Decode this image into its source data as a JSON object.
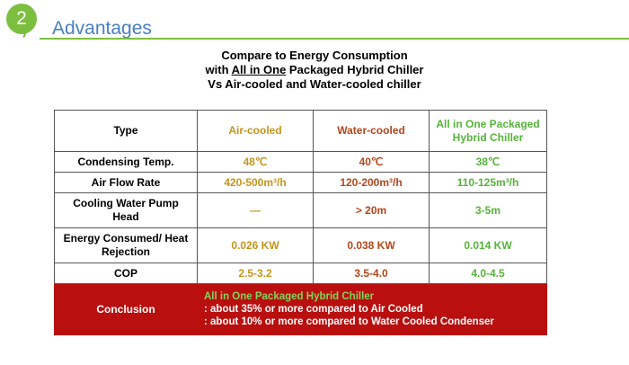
{
  "header": {
    "badge_number": "2",
    "title": "Advantages"
  },
  "subtitle": {
    "line1": "Compare to Energy Consumption",
    "line2_prefix": "with ",
    "line2_underlined": "All in One",
    "line2_suffix": " Packaged Hybrid Chiller",
    "line3": "Vs  Air-cooled and Water-cooled chiller"
  },
  "table": {
    "headers": [
      "Type",
      "Air-cooled",
      "Water-cooled",
      "All in One Packaged Hybrid Chiller"
    ],
    "rows": [
      {
        "label": "Condensing Temp.",
        "air": "48℃",
        "water": "40℃",
        "hybrid": "38℃"
      },
      {
        "label": "Air Flow Rate",
        "air": "420-500m³/h",
        "water": "120-200m³/h",
        "hybrid": "110-125m³/h"
      },
      {
        "label": "Cooling Water Pump Head",
        "air": "—",
        "water": "> 20m",
        "hybrid": "3-5m"
      },
      {
        "label": "Energy Consumed/ Heat Rejection",
        "air": "0.026 KW",
        "water": "0.038 KW",
        "hybrid": "0.014 KW"
      },
      {
        "label": "COP",
        "air": "2.5-3.2",
        "water": "3.5-4.0",
        "hybrid": "4.0-4.5"
      }
    ],
    "conclusion": {
      "label": "Conclusion",
      "highlight": "All in One Packaged Hybrid Chiller",
      "line1": ": about 35% or more compared to Air Cooled",
      "line2": ": about 10% or more compared to Water Cooled Condenser"
    }
  },
  "colors": {
    "accent_green": "#7cbf3f",
    "title_blue": "#4a7fc1",
    "air_gold": "#c5951a",
    "water_rust": "#b5461a",
    "hybrid_green": "#56b33a",
    "conclusion_red": "#b90f0f"
  }
}
